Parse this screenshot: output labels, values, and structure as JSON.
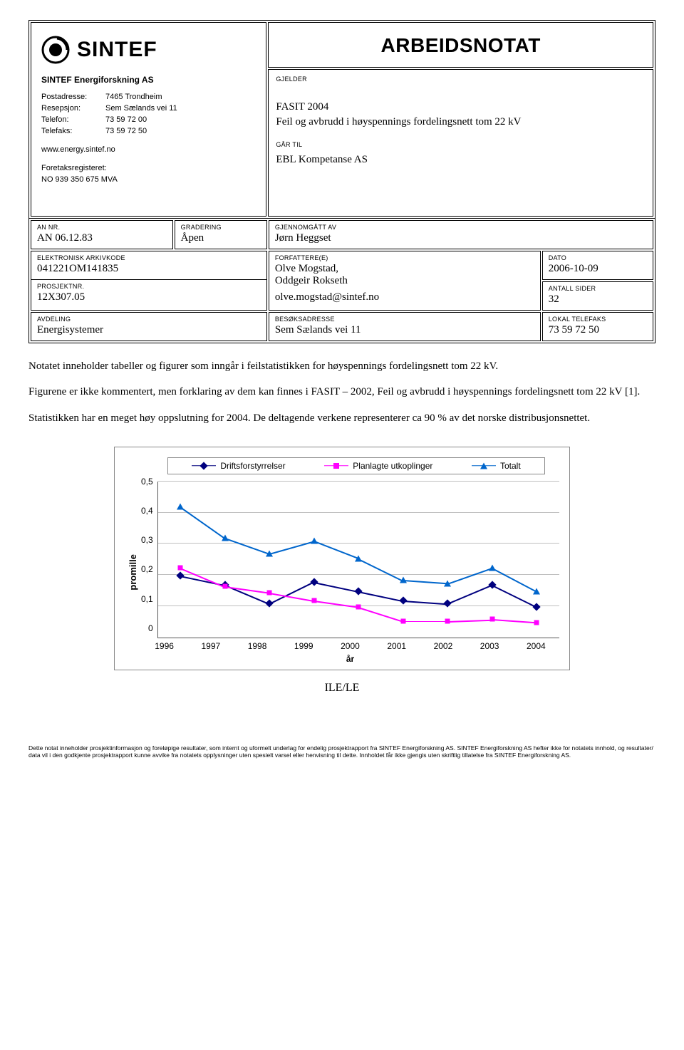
{
  "doc": {
    "title": "ARBEIDSNOTAT",
    "gjelder_label": "GJELDER",
    "gartil_label": "GÅR TIL",
    "subject_line1": "FASIT 2004",
    "subject_line2": "Feil og avbrudd i høyspennings fordelingsnett tom 22 kV",
    "recipient": "EBL Kompetanse AS"
  },
  "org": {
    "name": "SINTEF Energiforskning AS",
    "postadresse_k": "Postadresse:",
    "postadresse_v": "7465 Trondheim",
    "resepsjon_k": "Resepsjon:",
    "resepsjon_v": "Sem Sælands vei 11",
    "telefon_k": "Telefon:",
    "telefon_v": "73 59 72 00",
    "telefaks_k": "Telefaks:",
    "telefaks_v": "73 59 72 50",
    "web": "www.energy.sintef.no",
    "register_k": "Foretaksregisteret:",
    "register_v": "NO 939 350 675 MVA",
    "logo_text": "SINTEF"
  },
  "meta": {
    "an_nr_lbl": "AN NR.",
    "an_nr": "AN 06.12.83",
    "gradering_lbl": "GRADERING",
    "gradering": "Åpen",
    "gjennomgatt_lbl": "GJENNOMGÅTT AV",
    "gjennomgatt": "Jørn Heggset",
    "arkiv_lbl": "ELEKTRONISK ARKIVKODE",
    "arkiv": "041221OM141835",
    "forfattere_lbl": "FORFATTERE(E)",
    "forfattere_1": "Olve Mogstad,",
    "forfattere_2": "Oddgeir Rokseth",
    "email": "olve.mogstad@sintef.no",
    "dato_lbl": "DATO",
    "dato": "2006-10-09",
    "prosjekt_lbl": "PROSJEKTNR.",
    "prosjekt": "12X307.05",
    "sider_lbl": "ANTALL SIDER",
    "sider": "32",
    "avdeling_lbl": "AVDELING",
    "avdeling": "Energisystemer",
    "besok_lbl": "BESØKSADRESSE",
    "besok": "Sem Sælands vei 11",
    "lokalfax_lbl": "LOKAL TELEFAKS",
    "lokalfax": "73 59 72 50"
  },
  "body": {
    "p1": "Notatet inneholder tabeller og figurer som inngår i feilstatistikken for høyspennings fordelingsnett tom 22 kV.",
    "p2": "Figurene er ikke kommentert, men forklaring av dem kan finnes i FASIT – 2002, Feil og avbrudd i høyspennings fordelingsnett tom 22 kV [1].",
    "p3": "Statistikken har en meget høy oppslutning for 2004. De deltagende verkene representerer ca 90 % av det norske distribusjonsnettet."
  },
  "chart": {
    "type": "line",
    "caption": "ILE/LE",
    "y_label": "promille",
    "x_label": "år",
    "x_categories": [
      "1996",
      "1997",
      "1998",
      "1999",
      "2000",
      "2001",
      "2002",
      "2003",
      "2004"
    ],
    "y_ticks": [
      "0,5",
      "0,4",
      "0,3",
      "0,2",
      "0,1",
      "0"
    ],
    "ylim": [
      0,
      0.5
    ],
    "grid_color": "#bfbfbf",
    "axis_color": "#555555",
    "background_color": "#ffffff",
    "series": [
      {
        "name": "Driftsforstyrrelser",
        "color": "#00007f",
        "marker": "diamond",
        "values": [
          0.2,
          0.17,
          0.11,
          0.18,
          0.15,
          0.12,
          0.11,
          0.17,
          0.1
        ]
      },
      {
        "name": "Planlagte utkoplinger",
        "color": "#ff00ff",
        "marker": "square",
        "values": [
          0.225,
          0.165,
          0.145,
          0.12,
          0.1,
          0.055,
          0.055,
          0.06,
          0.05
        ]
      },
      {
        "name": "Totalt",
        "color": "#0066cc",
        "marker": "triangle",
        "values": [
          0.42,
          0.32,
          0.27,
          0.31,
          0.255,
          0.185,
          0.175,
          0.225,
          0.15
        ]
      }
    ],
    "line_width": 1.5,
    "marker_size": 8,
    "legend_fontsize": 12,
    "tick_fontsize": 12,
    "label_fontsize": 13
  },
  "footer": {
    "text": "Dette notat inneholder prosjektinformasjon og foreløpige resultater, som internt og uformelt underlag for endelig prosjektrapport fra SINTEF Energiforskning AS. SINTEF Energiforskning AS hefter ikke for notatets innhold, og resultater/ data vil i den godkjente prosjektrapport kunne avvike fra notatets opplysninger uten spesielt varsel eller henvisning til dette. Innholdet får ikke gjengis uten skriftlig tillatelse fra  SINTEF Energiforskning AS."
  }
}
